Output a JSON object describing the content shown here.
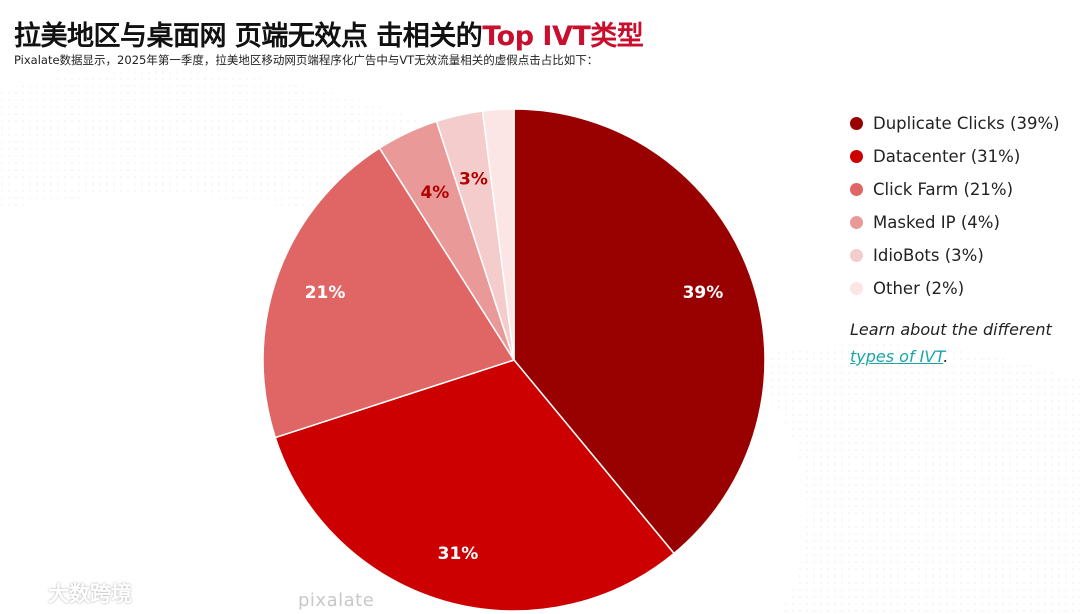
{
  "header": {
    "title_main": "拉美地区与桌面网 页端无效点 击相关的",
    "title_accent": "Top IVT类型",
    "subtitle": "Pixalate数据显示，2025年第一季度，拉美地区移动网页端程序化广告中与VT无效流量相关的虚假点击占比如下："
  },
  "chart_data": {
    "type": "pie",
    "title": "拉美地区与桌面网 页端无效点 击相关的Top IVT类型",
    "slices": [
      {
        "label": "Duplicate Clicks",
        "legend": "Duplicate Clicks (39%)",
        "value": 39,
        "display": "39%",
        "color": "#990000",
        "label_color": "#ffffff"
      },
      {
        "label": "Datacenter",
        "legend": "Datacenter (31%)",
        "value": 31,
        "display": "31%",
        "color": "#cc0000",
        "label_color": "#ffffff"
      },
      {
        "label": "Click Farm",
        "legend": "Click Farm (21%)",
        "value": 21,
        "display": "21%",
        "color": "#e06666",
        "label_color": "#ffffff"
      },
      {
        "label": "Masked IP",
        "legend": "Masked IP (4%)",
        "value": 4,
        "display": "4%",
        "color": "#ea9999",
        "label_color": "#b00000"
      },
      {
        "label": "IdioBots",
        "legend": "IdioBots (3%)",
        "value": 3,
        "display": "3%",
        "color": "#f4cccc",
        "label_color": "#b00000"
      },
      {
        "label": "Other",
        "legend": "Other (2%)",
        "value": 2,
        "display": "",
        "color": "#fbe5e5",
        "label_color": "#b00000"
      }
    ],
    "legend_position": "right"
  },
  "learn": {
    "text": "Learn about the different",
    "link_text": "types of IVT",
    "suffix": ".",
    "link_color": "#1ba5a7"
  },
  "brand": {
    "bottom_text": "pixalate",
    "watermark_text": "大数跨境"
  }
}
